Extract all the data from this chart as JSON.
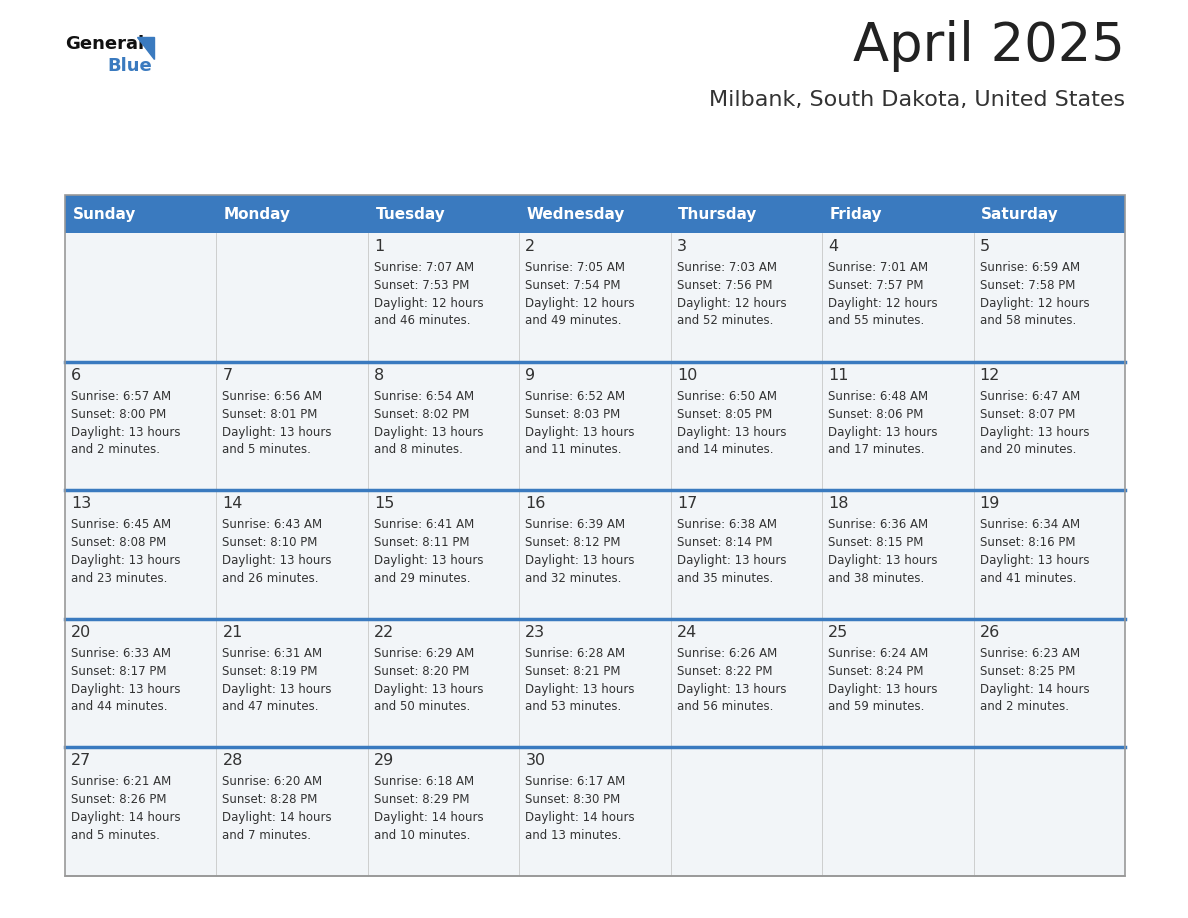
{
  "title": "April 2025",
  "subtitle": "Milbank, South Dakota, United States",
  "header_color": "#3a7abf",
  "header_text_color": "#ffffff",
  "text_color": "#333333",
  "cell_bg": "#f2f5f8",
  "separator_color": "#3a7abf",
  "days_of_week": [
    "Sunday",
    "Monday",
    "Tuesday",
    "Wednesday",
    "Thursday",
    "Friday",
    "Saturday"
  ],
  "weeks": [
    [
      {
        "day": "",
        "sunrise": "",
        "sunset": "",
        "daylight": ""
      },
      {
        "day": "",
        "sunrise": "",
        "sunset": "",
        "daylight": ""
      },
      {
        "day": "1",
        "sunrise": "Sunrise: 7:07 AM",
        "sunset": "Sunset: 7:53 PM",
        "daylight": "Daylight: 12 hours\nand 46 minutes."
      },
      {
        "day": "2",
        "sunrise": "Sunrise: 7:05 AM",
        "sunset": "Sunset: 7:54 PM",
        "daylight": "Daylight: 12 hours\nand 49 minutes."
      },
      {
        "day": "3",
        "sunrise": "Sunrise: 7:03 AM",
        "sunset": "Sunset: 7:56 PM",
        "daylight": "Daylight: 12 hours\nand 52 minutes."
      },
      {
        "day": "4",
        "sunrise": "Sunrise: 7:01 AM",
        "sunset": "Sunset: 7:57 PM",
        "daylight": "Daylight: 12 hours\nand 55 minutes."
      },
      {
        "day": "5",
        "sunrise": "Sunrise: 6:59 AM",
        "sunset": "Sunset: 7:58 PM",
        "daylight": "Daylight: 12 hours\nand 58 minutes."
      }
    ],
    [
      {
        "day": "6",
        "sunrise": "Sunrise: 6:57 AM",
        "sunset": "Sunset: 8:00 PM",
        "daylight": "Daylight: 13 hours\nand 2 minutes."
      },
      {
        "day": "7",
        "sunrise": "Sunrise: 6:56 AM",
        "sunset": "Sunset: 8:01 PM",
        "daylight": "Daylight: 13 hours\nand 5 minutes."
      },
      {
        "day": "8",
        "sunrise": "Sunrise: 6:54 AM",
        "sunset": "Sunset: 8:02 PM",
        "daylight": "Daylight: 13 hours\nand 8 minutes."
      },
      {
        "day": "9",
        "sunrise": "Sunrise: 6:52 AM",
        "sunset": "Sunset: 8:03 PM",
        "daylight": "Daylight: 13 hours\nand 11 minutes."
      },
      {
        "day": "10",
        "sunrise": "Sunrise: 6:50 AM",
        "sunset": "Sunset: 8:05 PM",
        "daylight": "Daylight: 13 hours\nand 14 minutes."
      },
      {
        "day": "11",
        "sunrise": "Sunrise: 6:48 AM",
        "sunset": "Sunset: 8:06 PM",
        "daylight": "Daylight: 13 hours\nand 17 minutes."
      },
      {
        "day": "12",
        "sunrise": "Sunrise: 6:47 AM",
        "sunset": "Sunset: 8:07 PM",
        "daylight": "Daylight: 13 hours\nand 20 minutes."
      }
    ],
    [
      {
        "day": "13",
        "sunrise": "Sunrise: 6:45 AM",
        "sunset": "Sunset: 8:08 PM",
        "daylight": "Daylight: 13 hours\nand 23 minutes."
      },
      {
        "day": "14",
        "sunrise": "Sunrise: 6:43 AM",
        "sunset": "Sunset: 8:10 PM",
        "daylight": "Daylight: 13 hours\nand 26 minutes."
      },
      {
        "day": "15",
        "sunrise": "Sunrise: 6:41 AM",
        "sunset": "Sunset: 8:11 PM",
        "daylight": "Daylight: 13 hours\nand 29 minutes."
      },
      {
        "day": "16",
        "sunrise": "Sunrise: 6:39 AM",
        "sunset": "Sunset: 8:12 PM",
        "daylight": "Daylight: 13 hours\nand 32 minutes."
      },
      {
        "day": "17",
        "sunrise": "Sunrise: 6:38 AM",
        "sunset": "Sunset: 8:14 PM",
        "daylight": "Daylight: 13 hours\nand 35 minutes."
      },
      {
        "day": "18",
        "sunrise": "Sunrise: 6:36 AM",
        "sunset": "Sunset: 8:15 PM",
        "daylight": "Daylight: 13 hours\nand 38 minutes."
      },
      {
        "day": "19",
        "sunrise": "Sunrise: 6:34 AM",
        "sunset": "Sunset: 8:16 PM",
        "daylight": "Daylight: 13 hours\nand 41 minutes."
      }
    ],
    [
      {
        "day": "20",
        "sunrise": "Sunrise: 6:33 AM",
        "sunset": "Sunset: 8:17 PM",
        "daylight": "Daylight: 13 hours\nand 44 minutes."
      },
      {
        "day": "21",
        "sunrise": "Sunrise: 6:31 AM",
        "sunset": "Sunset: 8:19 PM",
        "daylight": "Daylight: 13 hours\nand 47 minutes."
      },
      {
        "day": "22",
        "sunrise": "Sunrise: 6:29 AM",
        "sunset": "Sunset: 8:20 PM",
        "daylight": "Daylight: 13 hours\nand 50 minutes."
      },
      {
        "day": "23",
        "sunrise": "Sunrise: 6:28 AM",
        "sunset": "Sunset: 8:21 PM",
        "daylight": "Daylight: 13 hours\nand 53 minutes."
      },
      {
        "day": "24",
        "sunrise": "Sunrise: 6:26 AM",
        "sunset": "Sunset: 8:22 PM",
        "daylight": "Daylight: 13 hours\nand 56 minutes."
      },
      {
        "day": "25",
        "sunrise": "Sunrise: 6:24 AM",
        "sunset": "Sunset: 8:24 PM",
        "daylight": "Daylight: 13 hours\nand 59 minutes."
      },
      {
        "day": "26",
        "sunrise": "Sunrise: 6:23 AM",
        "sunset": "Sunset: 8:25 PM",
        "daylight": "Daylight: 14 hours\nand 2 minutes."
      }
    ],
    [
      {
        "day": "27",
        "sunrise": "Sunrise: 6:21 AM",
        "sunset": "Sunset: 8:26 PM",
        "daylight": "Daylight: 14 hours\nand 5 minutes."
      },
      {
        "day": "28",
        "sunrise": "Sunrise: 6:20 AM",
        "sunset": "Sunset: 8:28 PM",
        "daylight": "Daylight: 14 hours\nand 7 minutes."
      },
      {
        "day": "29",
        "sunrise": "Sunrise: 6:18 AM",
        "sunset": "Sunset: 8:29 PM",
        "daylight": "Daylight: 14 hours\nand 10 minutes."
      },
      {
        "day": "30",
        "sunrise": "Sunrise: 6:17 AM",
        "sunset": "Sunset: 8:30 PM",
        "daylight": "Daylight: 14 hours\nand 13 minutes."
      },
      {
        "day": "",
        "sunrise": "",
        "sunset": "",
        "daylight": ""
      },
      {
        "day": "",
        "sunrise": "",
        "sunset": "",
        "daylight": ""
      },
      {
        "day": "",
        "sunrise": "",
        "sunset": "",
        "daylight": ""
      }
    ]
  ]
}
